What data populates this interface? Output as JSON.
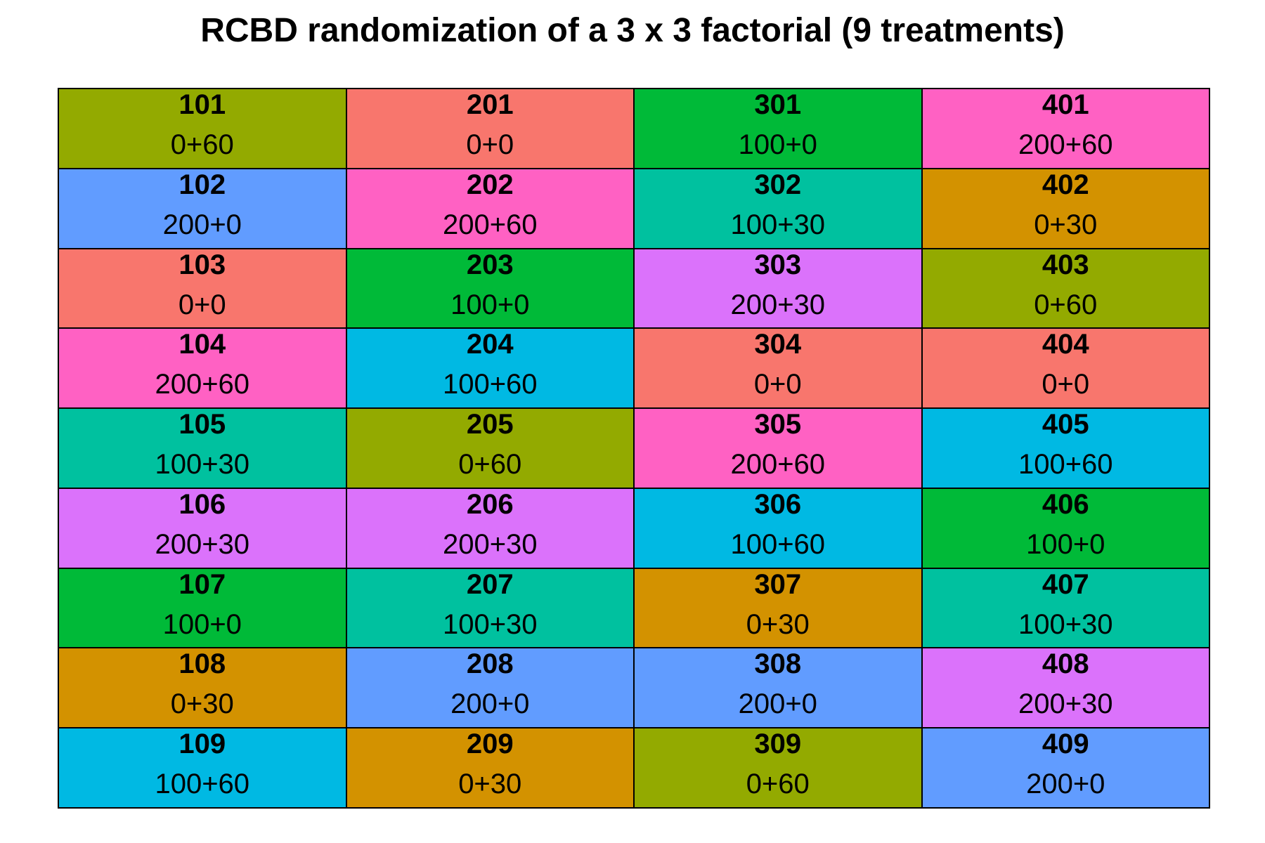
{
  "title": "RCBD randomization of a 3 x 3 factorial (9 treatments)",
  "treatment_colors": {
    "0+0": "#F8766D",
    "0+30": "#D39200",
    "0+60": "#93AA00",
    "100+0": "#00BA38",
    "100+30": "#00C19F",
    "100+60": "#00B9E3",
    "200+0": "#619CFF",
    "200+30": "#DB72FB",
    "200+60": "#FF61C3"
  },
  "blocks": [
    {
      "plots": [
        {
          "id": "101",
          "trt": "0+60"
        },
        {
          "id": "102",
          "trt": "200+0"
        },
        {
          "id": "103",
          "trt": "0+0"
        },
        {
          "id": "104",
          "trt": "200+60"
        },
        {
          "id": "105",
          "trt": "100+30"
        },
        {
          "id": "106",
          "trt": "200+30"
        },
        {
          "id": "107",
          "trt": "100+0"
        },
        {
          "id": "108",
          "trt": "0+30"
        },
        {
          "id": "109",
          "trt": "100+60"
        }
      ]
    },
    {
      "plots": [
        {
          "id": "201",
          "trt": "0+0"
        },
        {
          "id": "202",
          "trt": "200+60"
        },
        {
          "id": "203",
          "trt": "100+0"
        },
        {
          "id": "204",
          "trt": "100+60"
        },
        {
          "id": "205",
          "trt": "0+60"
        },
        {
          "id": "206",
          "trt": "200+30"
        },
        {
          "id": "207",
          "trt": "100+30"
        },
        {
          "id": "208",
          "trt": "200+0"
        },
        {
          "id": "209",
          "trt": "0+30"
        }
      ]
    },
    {
      "plots": [
        {
          "id": "301",
          "trt": "100+0"
        },
        {
          "id": "302",
          "trt": "100+30"
        },
        {
          "id": "303",
          "trt": "200+30"
        },
        {
          "id": "304",
          "trt": "0+0"
        },
        {
          "id": "305",
          "trt": "200+60"
        },
        {
          "id": "306",
          "trt": "100+60"
        },
        {
          "id": "307",
          "trt": "0+30"
        },
        {
          "id": "308",
          "trt": "200+0"
        },
        {
          "id": "309",
          "trt": "0+60"
        }
      ]
    },
    {
      "plots": [
        {
          "id": "401",
          "trt": "200+60"
        },
        {
          "id": "402",
          "trt": "0+30"
        },
        {
          "id": "403",
          "trt": "0+60"
        },
        {
          "id": "404",
          "trt": "0+0"
        },
        {
          "id": "405",
          "trt": "100+60"
        },
        {
          "id": "406",
          "trt": "100+0"
        },
        {
          "id": "407",
          "trt": "100+30"
        },
        {
          "id": "408",
          "trt": "200+30"
        },
        {
          "id": "409",
          "trt": "200+0"
        }
      ]
    }
  ]
}
